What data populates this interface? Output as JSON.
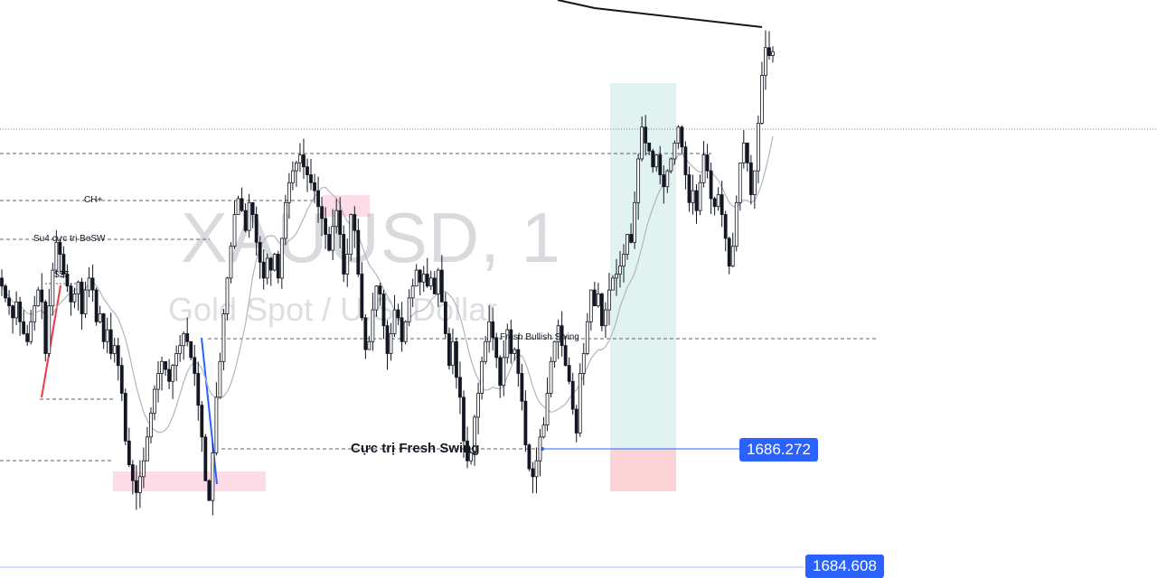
{
  "watermark": {
    "symbol": "XAUUSD, 1",
    "description": "Gold Spot / U.S. Dollar"
  },
  "annotations": {
    "ch_plus": "CH+",
    "su4": "Su4 cực trị BeSW",
    "sss": "$$$",
    "fresh_bullish_swing": "Fresh Bullish Swing",
    "fresh_swing_extreme": "Cực trị Fresh Swing"
  },
  "price_labels": {
    "entry": "1686.272",
    "bottom": "1684.608"
  },
  "colors": {
    "candle": "#131722",
    "ma_line": "#b2b5be",
    "blue_line": "#2962ff",
    "red_line": "#f23645",
    "target_zone": "rgba(8,153,129,0.12)",
    "stop_zone": "rgba(242,54,69,0.22)",
    "pink_zone": "rgba(242,54,120,0.18)",
    "price_tag": "#2962ff"
  },
  "chart_data": {
    "type": "candlestick",
    "symbol": "XAUUSD",
    "timeframe": "1",
    "ylim": [
      1684.2,
      1698.5
    ],
    "levels": {
      "fresh_swing_extreme": 1686.272,
      "bottom_tag": 1684.608
    },
    "closes": [
      1691.3,
      1691.0,
      1690.8,
      1690.5,
      1690.9,
      1690.4,
      1690.1,
      1689.9,
      1690.4,
      1690.8,
      1691.2,
      1690.9,
      1689.6,
      1690.8,
      1691.7,
      1692.4,
      1692.1,
      1691.6,
      1691.3,
      1690.9,
      1691.1,
      1691.4,
      1690.6,
      1691.2,
      1691.5,
      1691.2,
      1690.4,
      1690.6,
      1689.9,
      1690.2,
      1689.6,
      1689.8,
      1689.3,
      1688.6,
      1687.4,
      1686.8,
      1686.4,
      1686.1,
      1686.5,
      1686.9,
      1687.5,
      1688.1,
      1688.7,
      1689.1,
      1689.4,
      1689.2,
      1688.9,
      1689.3,
      1689.6,
      1689.8,
      1690.1,
      1689.9,
      1689.5,
      1689.1,
      1688.3,
      1687.5,
      1686.4,
      1685.9,
      1687.1,
      1688.5,
      1689.4,
      1690.6,
      1691.5,
      1692.3,
      1693.1,
      1693.5,
      1693.2,
      1692.7,
      1693.4,
      1693.1,
      1692.4,
      1691.9,
      1691.5,
      1692.0,
      1691.7,
      1692.1,
      1691.5,
      1692.5,
      1693.4,
      1693.9,
      1694.2,
      1694.4,
      1694.6,
      1694.3,
      1694.1,
      1693.9,
      1693.7,
      1693.3,
      1693.0,
      1692.6,
      1692.2,
      1692.8,
      1693.2,
      1692.6,
      1691.6,
      1692.1,
      1693.1,
      1692.7,
      1691.6,
      1690.5,
      1689.7,
      1689.9,
      1690.7,
      1691.3,
      1691.1,
      1690.3,
      1689.6,
      1690.1,
      1690.7,
      1690.5,
      1689.9,
      1690.4,
      1691.0,
      1691.3,
      1691.7,
      1691.4,
      1691.6,
      1691.3,
      1691.5,
      1691.1,
      1691.7,
      1690.9,
      1690.1,
      1689.3,
      1689.9,
      1689.0,
      1688.5,
      1687.4,
      1686.9,
      1687.1,
      1688.0,
      1688.6,
      1689.4,
      1689.9,
      1690.4,
      1690.0,
      1689.5,
      1688.8,
      1689.5,
      1690.2,
      1689.6,
      1689.7,
      1689.1,
      1688.4,
      1687.3,
      1686.7,
      1686.5,
      1686.9,
      1687.5,
      1687.8,
      1688.6,
      1689.4,
      1689.9,
      1690.3,
      1689.8,
      1689.3,
      1688.9,
      1688.2,
      1687.6,
      1689.1,
      1689.6,
      1690.4,
      1691.2,
      1690.8,
      1691.1,
      1690.3,
      1690.7,
      1691.2,
      1691.5,
      1691.6,
      1691.8,
      1692.1,
      1692.6,
      1692.4,
      1693.4,
      1694.5,
      1695.3,
      1694.9,
      1694.7,
      1694.3,
      1694.6,
      1694.1,
      1693.8,
      1694.2,
      1694.5,
      1694.9,
      1695.3,
      1694.8,
      1694.1,
      1693.4,
      1693.7,
      1693.2,
      1693.9,
      1694.6,
      1694.2,
      1693.5,
      1693.3,
      1693.6,
      1693.1,
      1692.5,
      1691.8,
      1692.3,
      1693.4,
      1694.4,
      1694.9,
      1694.4,
      1693.6,
      1694.2,
      1695.4,
      1696.6,
      1697.3,
      1697.1,
      1697.2
    ]
  }
}
